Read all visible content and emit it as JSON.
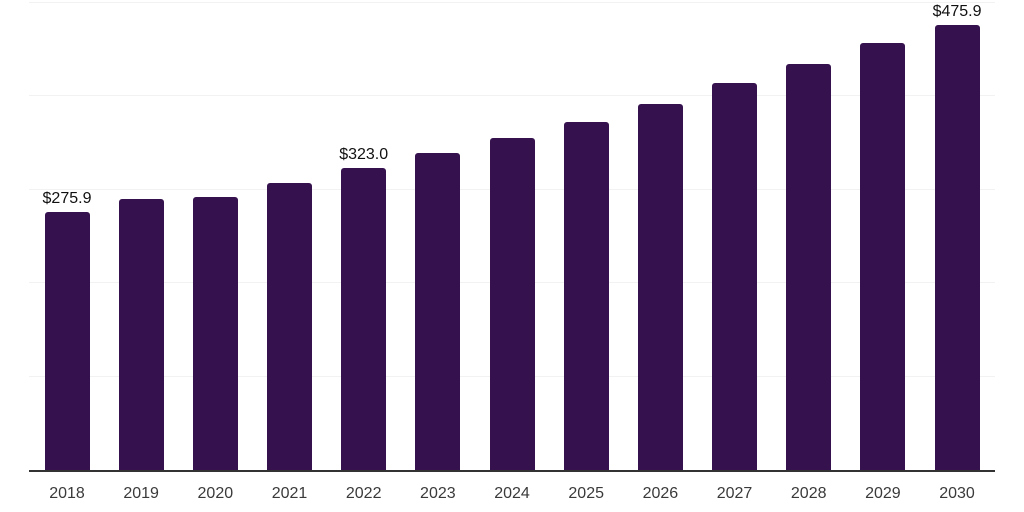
{
  "chart_data": {
    "type": "bar",
    "title": "",
    "xlabel": "",
    "ylabel": "",
    "categories": [
      "2018",
      "2019",
      "2020",
      "2021",
      "2022",
      "2023",
      "2024",
      "2025",
      "2026",
      "2027",
      "2028",
      "2029",
      "2030"
    ],
    "values": [
      275.9,
      289.4,
      291.5,
      306.4,
      323.0,
      338.3,
      354.3,
      371.3,
      391.5,
      413.8,
      434.0,
      456.4,
      475.9
    ],
    "data_labels": [
      "$275.9",
      null,
      null,
      null,
      "$323.0",
      null,
      null,
      null,
      null,
      null,
      null,
      null,
      "$475.9"
    ],
    "ylim": [
      0,
      500
    ],
    "gridline_values": [
      100,
      200,
      300,
      400,
      500
    ],
    "grid": "horizontal",
    "legend": "none",
    "colors": {
      "bar": "#35114d",
      "gridline": "#f2f2f2",
      "axis_line": "#333333",
      "data_label": "#111111",
      "tick_label": "#3a3a3a",
      "background": "#ffffff"
    }
  }
}
